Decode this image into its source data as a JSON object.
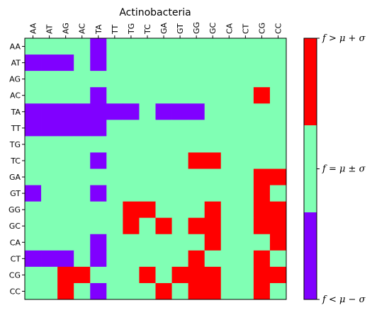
{
  "chart_data": {
    "type": "heatmap",
    "title": "Actinobacteria",
    "x_categories": [
      "AA",
      "AT",
      "AG",
      "AC",
      "TA",
      "TT",
      "TG",
      "TC",
      "GA",
      "GT",
      "GG",
      "GC",
      "CA",
      "CT",
      "CG",
      "CC"
    ],
    "y_categories": [
      "AA",
      "AT",
      "AG",
      "AC",
      "TA",
      "TT",
      "TG",
      "TC",
      "GA",
      "GT",
      "GG",
      "GC",
      "CA",
      "CT",
      "CG",
      "CC"
    ],
    "levels": [
      {
        "value": -1,
        "label": "f < μ − σ",
        "color": "#8000ff"
      },
      {
        "value": 0,
        "label": "f = μ ± σ",
        "color": "#80ffb4"
      },
      {
        "value": 1,
        "label": "f > μ + σ",
        "color": "#ff0000"
      }
    ],
    "colorbar": {
      "position": "right",
      "tick_labels": [
        "f < μ − σ",
        "f = μ ± σ",
        "f > μ + σ"
      ]
    },
    "matrix": [
      [
        0,
        0,
        0,
        0,
        -1,
        0,
        0,
        0,
        0,
        0,
        0,
        0,
        0,
        0,
        0,
        0
      ],
      [
        -1,
        -1,
        -1,
        0,
        -1,
        0,
        0,
        0,
        0,
        0,
        0,
        0,
        0,
        0,
        0,
        0
      ],
      [
        0,
        0,
        0,
        0,
        0,
        0,
        0,
        0,
        0,
        0,
        0,
        0,
        0,
        0,
        0,
        0
      ],
      [
        0,
        0,
        0,
        0,
        -1,
        0,
        0,
        0,
        0,
        0,
        0,
        0,
        0,
        0,
        1,
        0
      ],
      [
        -1,
        -1,
        -1,
        -1,
        -1,
        -1,
        -1,
        0,
        -1,
        -1,
        -1,
        0,
        0,
        0,
        0,
        0
      ],
      [
        -1,
        -1,
        -1,
        -1,
        -1,
        0,
        0,
        0,
        0,
        0,
        0,
        0,
        0,
        0,
        0,
        0
      ],
      [
        0,
        0,
        0,
        0,
        0,
        0,
        0,
        0,
        0,
        0,
        0,
        0,
        0,
        0,
        0,
        0
      ],
      [
        0,
        0,
        0,
        0,
        -1,
        0,
        0,
        0,
        0,
        0,
        1,
        1,
        0,
        0,
        0,
        0
      ],
      [
        0,
        0,
        0,
        0,
        0,
        0,
        0,
        0,
        0,
        0,
        0,
        0,
        0,
        0,
        1,
        1
      ],
      [
        -1,
        0,
        0,
        0,
        -1,
        0,
        0,
        0,
        0,
        0,
        0,
        0,
        0,
        0,
        1,
        0
      ],
      [
        0,
        0,
        0,
        0,
        0,
        0,
        1,
        1,
        0,
        0,
        0,
        1,
        0,
        0,
        1,
        1
      ],
      [
        0,
        0,
        0,
        0,
        0,
        0,
        1,
        0,
        1,
        0,
        1,
        1,
        0,
        0,
        1,
        1
      ],
      [
        0,
        0,
        0,
        0,
        -1,
        0,
        0,
        0,
        0,
        0,
        0,
        1,
        0,
        0,
        0,
        1
      ],
      [
        -1,
        -1,
        -1,
        0,
        -1,
        0,
        0,
        0,
        0,
        0,
        1,
        0,
        0,
        0,
        1,
        0
      ],
      [
        0,
        0,
        1,
        1,
        0,
        0,
        0,
        1,
        0,
        1,
        1,
        1,
        0,
        0,
        1,
        1
      ],
      [
        0,
        0,
        1,
        0,
        -1,
        0,
        0,
        0,
        1,
        0,
        1,
        1,
        0,
        0,
        1,
        0
      ]
    ]
  }
}
